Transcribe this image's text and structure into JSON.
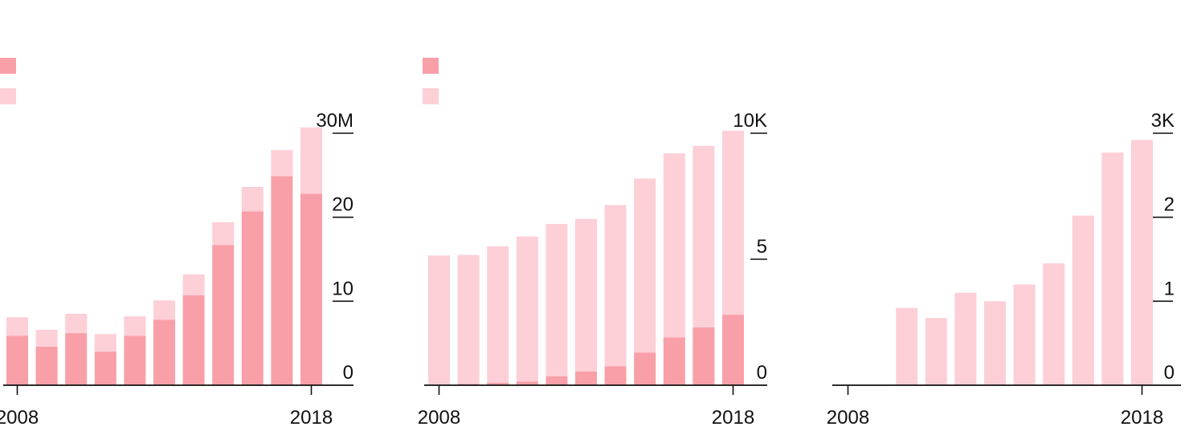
{
  "colors": {
    "dark": "#f99fa8",
    "light": "#fdcfd7",
    "axis": "#111111",
    "text": "#111111"
  },
  "chart_data": [
    {
      "type": "bar",
      "stacked": true,
      "legend": "top-left",
      "x": [
        2008,
        2009,
        2010,
        2011,
        2012,
        2013,
        2014,
        2015,
        2016,
        2017,
        2018
      ],
      "x_tick_labels": [
        "2008",
        "2018"
      ],
      "y_ticks": [
        0,
        10,
        20,
        30
      ],
      "y_tick_labels": [
        "0",
        "10",
        "20",
        "30M"
      ],
      "ylim": [
        0,
        30
      ],
      "series": [
        {
          "color": "dark",
          "values": [
            5.9,
            4.6,
            6.2,
            4.0,
            5.9,
            7.8,
            10.7,
            16.7,
            20.7,
            24.9,
            22.8
          ]
        },
        {
          "color": "light",
          "values": [
            2.2,
            2.0,
            2.3,
            2.1,
            2.3,
            2.3,
            2.5,
            2.7,
            2.9,
            3.1,
            7.9
          ]
        }
      ]
    },
    {
      "type": "bar",
      "stacked": true,
      "legend": "top-left",
      "x": [
        2008,
        2009,
        2010,
        2011,
        2012,
        2013,
        2014,
        2015,
        2016,
        2017,
        2018
      ],
      "x_tick_labels": [
        "2008",
        "2018"
      ],
      "y_ticks": [
        0,
        5,
        10
      ],
      "y_tick_labels": [
        "0",
        "5",
        "10K"
      ],
      "ylim": [
        0,
        10
      ],
      "series": [
        {
          "color": "dark",
          "values": [
            0.02,
            0.05,
            0.1,
            0.15,
            0.35,
            0.55,
            0.75,
            1.3,
            1.9,
            2.3,
            2.8
          ]
        },
        {
          "color": "light",
          "values": [
            5.13,
            5.12,
            5.41,
            5.75,
            6.05,
            6.05,
            6.4,
            6.9,
            7.3,
            7.2,
            7.3
          ]
        }
      ]
    },
    {
      "type": "bar",
      "stacked": true,
      "legend": "none",
      "x": [
        2008,
        2009,
        2010,
        2011,
        2012,
        2013,
        2014,
        2015,
        2016,
        2017,
        2018
      ],
      "x_tick_labels": [
        "2008",
        "2018"
      ],
      "y_ticks": [
        0,
        1,
        2,
        3
      ],
      "y_tick_labels": [
        "0",
        "1",
        "2",
        "3K"
      ],
      "ylim": [
        0,
        3
      ],
      "series": [
        {
          "color": "light",
          "values": [
            0,
            0,
            0.92,
            0.8,
            1.1,
            1.0,
            1.2,
            1.45,
            2.02,
            2.77,
            2.92
          ]
        }
      ]
    }
  ]
}
